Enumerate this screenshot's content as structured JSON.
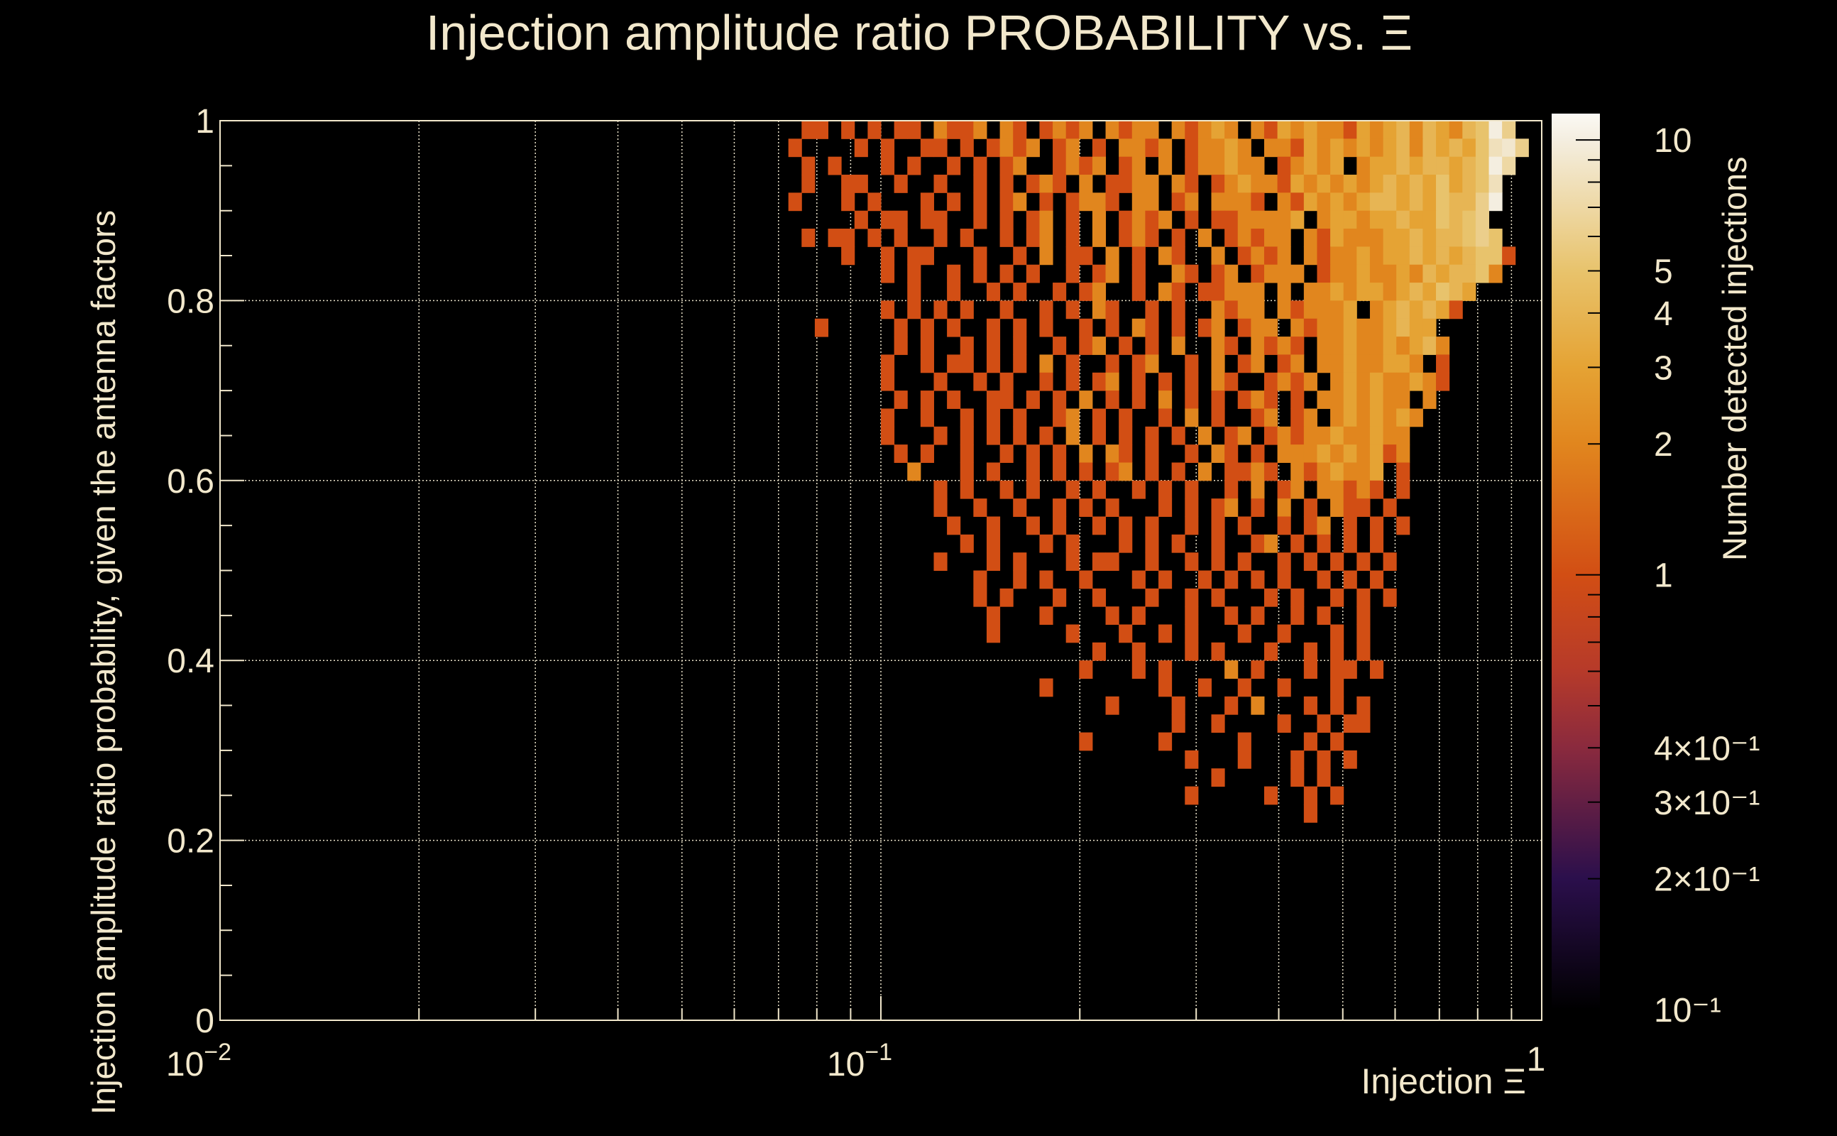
{
  "chart_data": {
    "type": "heatmap",
    "title": "Injection amplitude ratio PROBABILITY vs.  Ξ",
    "xlabel": "Injection Ξ",
    "ylabel": "Injection amplitude ratio probability, given the antenna factors",
    "zlabel": "Number detected injections",
    "xscale": "log",
    "xlim": [
      0.01,
      1
    ],
    "ylim": [
      0,
      1
    ],
    "zscale": "log",
    "zlim": [
      0.1,
      11.5
    ],
    "grid": true,
    "x_tick_labels": [
      {
        "value": 0.01,
        "base": "10",
        "exp": "−2"
      },
      {
        "value": 0.1,
        "base": "10",
        "exp": "−1"
      },
      {
        "value": 1,
        "base": "1",
        "exp": ""
      }
    ],
    "y_tick_labels": [
      "0",
      "0.2",
      "0.4",
      "0.6",
      "0.8",
      "1"
    ],
    "z_tick_labels": [
      {
        "value": 10,
        "text": "10"
      },
      {
        "value": 5,
        "text": "5"
      },
      {
        "value": 4,
        "text": "4"
      },
      {
        "value": 3,
        "text": "3"
      },
      {
        "value": 2,
        "text": "2"
      },
      {
        "value": 1,
        "text": "1"
      },
      {
        "value": 0.4,
        "text": "4×10⁻¹"
      },
      {
        "value": 0.3,
        "text": "3×10⁻¹"
      },
      {
        "value": 0.2,
        "text": "2×10⁻¹"
      },
      {
        "value": 0.1,
        "text": "10⁻¹"
      }
    ],
    "colormap_stops": [
      {
        "value": 0.1,
        "color": "#000000"
      },
      {
        "value": 0.2,
        "color": "#2b0f4c"
      },
      {
        "value": 0.4,
        "color": "#8a2a3e"
      },
      {
        "value": 0.6,
        "color": "#b63a2a"
      },
      {
        "value": 1,
        "color": "#d24e14"
      },
      {
        "value": 2,
        "color": "#e1861e"
      },
      {
        "value": 3,
        "color": "#e5a334"
      },
      {
        "value": 5,
        "color": "#e8c36c"
      },
      {
        "value": 10,
        "color": "#f4eee0"
      },
      {
        "value": 11.5,
        "color": "#fbf9f4"
      }
    ],
    "grid_encoding": {
      "note": "rows from y=1.0 downward, 0.02 per row; columns log10(x) from -1.2, 0.02 per column; '.'=0, digits=count, 'a'=10",
      "y_top": 1.0,
      "y_step": 0.02,
      "log10x_start": -1.2,
      "log10x_step": 0.02
    },
    "rows": [
      "....11.1.1.11.2112.21.1212.2122.21232.213232213234243245a6..",
      "...1....1.1..11.1.1212.12.1.2212.12232.22132323234243435896.",
      "....1.1...1.1..1.1.12..1212.12.2.122322.12323.2334344345a7.",
      "....1..11..1..1..1.1.121.2.1122.21.1232213232323434353458.",
      "...1...1.1...1.1.1.12.1.1221.22.12.2221.2132323443435446a.",
      "........1.11.11..1.1.12.1.2.1212.1.1122223.2332334335456.",
      "....1.11.1.1..1.1..1.12.1.2.121.1.2.12122.213222334344565.",
      ".......1..1.11...1..1.2.11.2.1.21..2.1212.2122323343434551",
      "..........1.1..1.1.1.1..1.12.1..21.12.1222.12232232434452.",
      "............1..1..1.1..1.12..1.21.11222.2.2232332343543.",
      "..........1.1.1.1..1..1.1.21..1.1..2122.212223.2343431.",
      ".....1.....1.1.1..1.1.1..1.1.21.1.12.122.21223223433.",
      "...........1.1..1.1.1..1.12.1.1.2..21.2121.2232232342.",
      "..........1..1.11.1.1.2.1..1.12..1.2.12.12.22322332.1.",
      "..........1...1..1.1..1.1.12.1.1.1.21..1212.232322321.",
      "...........1.1.1..11.1.1.2.1.1.2.1.1.121.1.2232322.2.",
      "..........1..1..1.1.1..12.1.1..1.2.1..12.12.2323232.",
      "..........1...1.1.1.1.1.2.1.1.1.1.2.12.12122322322.",
      "...........1.1..1..1.1.1.2.21.1..1.21.1.2223232312.",
      "............2...1.1..1.1.1.12.1.1.2.1121.2123223.1.",
      "..............1.1..1.1..1.1..1.1.1..1.2.12.22121.1.",
      "..............1..1..1..1.1.1...1.1.12.1.2.1.211.1",
      "...............1..1..1.1..1.1.1..1.1.1..1.12.1.1.1",
      "................1.1...1.1...1.1.1..1..12.1.1.1.1.",
      "..............1...1.1...1.11..1..1.1.1..1.1.1.1.1",
      ".................1..1.1..1...1.1..1.1.1.1..1.1.1.",
      ".................1.1...1..1...1..1.1...1.1..1.1.1",
      "..................1...1....1.1...1..1.1..1.1..1.",
      "..................1.....1...1..1.1...1..1...1.1",
      "..........................1..1...1.1...1..1.1.1",
      ".........................1...1.1....2.1...1.11.1",
      "......................1........1..1..1..1...1..",
      "...........................1....1...1.2...1.1.1",
      "................................1..1....1..1.11",
      ".........................1.....1.....1....1.1.",
      ".................................1...1...1.1.1",
      "...................................1.....1.1..",
      ".................................1.....1..1.1.",
      "..........................................1...",
      "............................................."
    ]
  }
}
